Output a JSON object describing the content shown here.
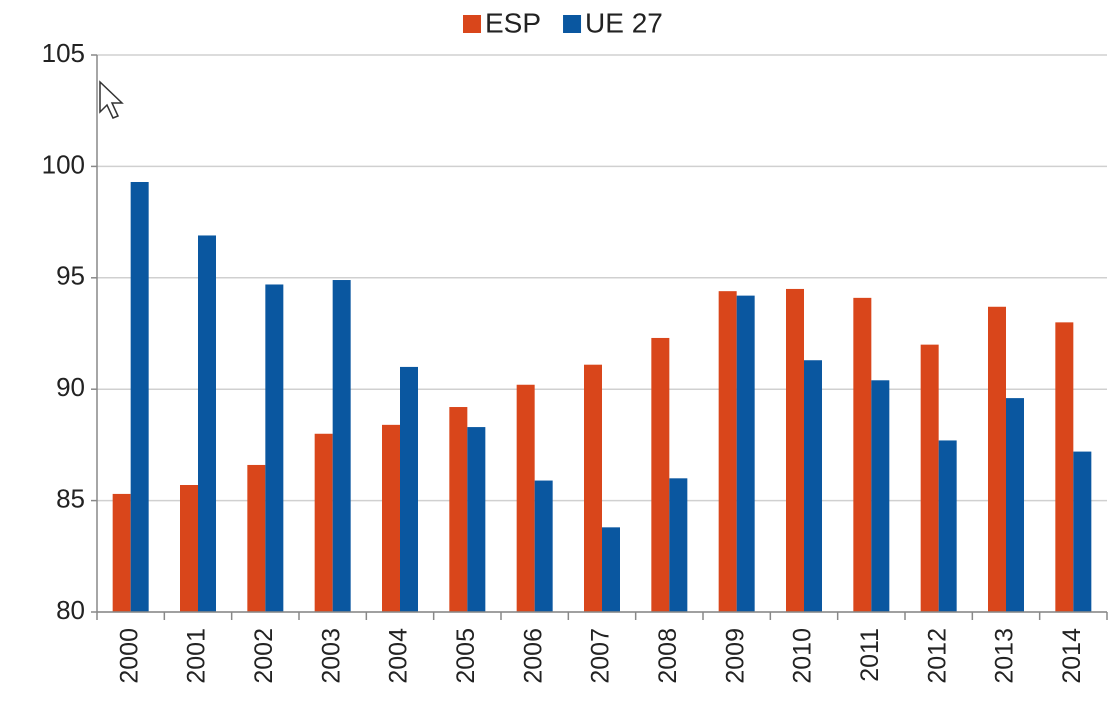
{
  "chart_data": {
    "type": "bar",
    "categories": [
      "2000",
      "2001",
      "2002",
      "2003",
      "2004",
      "2005",
      "2006",
      "2007",
      "2008",
      "2009",
      "2010",
      "2011",
      "2012",
      "2013",
      "2014"
    ],
    "series": [
      {
        "name": "ESP",
        "color": "#d9461b",
        "values": [
          85.3,
          85.7,
          86.6,
          88.0,
          88.4,
          89.2,
          90.2,
          91.1,
          92.3,
          94.4,
          94.5,
          94.1,
          92.0,
          93.7,
          93.0
        ]
      },
      {
        "name": "UE 27",
        "color": "#0a57a0",
        "values": [
          99.3,
          96.9,
          94.7,
          94.9,
          91.0,
          88.3,
          85.9,
          83.8,
          86.0,
          94.2,
          91.3,
          90.4,
          87.7,
          89.6,
          87.2
        ]
      }
    ],
    "ylim": [
      80,
      105
    ],
    "yticks": [
      80,
      85,
      90,
      95,
      100,
      105
    ],
    "grid": true,
    "legend": "top"
  }
}
